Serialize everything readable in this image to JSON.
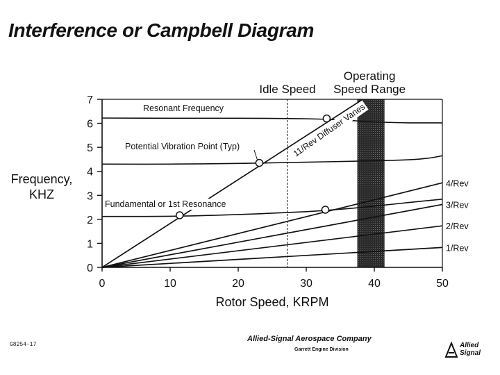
{
  "chart_data": {
    "type": "line",
    "title": "Interference or Campbell Diagram",
    "xlabel": "Rotor Speed, KRPM",
    "ylabel_lines": [
      "Frequency,",
      "KHZ"
    ],
    "xlim": [
      0,
      50
    ],
    "ylim": [
      0,
      7
    ],
    "x_ticks": [
      0,
      10,
      20,
      30,
      40,
      50
    ],
    "y_ticks": [
      0,
      1,
      2,
      3,
      4,
      5,
      6,
      7
    ],
    "grid": false,
    "series": [
      {
        "name": "1/Rev",
        "x": [
          0,
          50
        ],
        "y": [
          0,
          0.83
        ]
      },
      {
        "name": "2/Rev",
        "x": [
          0,
          50
        ],
        "y": [
          0,
          1.73
        ]
      },
      {
        "name": "3/Rev",
        "x": [
          0,
          50
        ],
        "y": [
          0,
          2.62
        ]
      },
      {
        "name": "4/Rev",
        "x": [
          0,
          50
        ],
        "y": [
          0,
          3.52
        ]
      },
      {
        "name": "11/Rev Diffuser Vanes",
        "x": [
          0,
          38.3
        ],
        "y": [
          0,
          7.0
        ]
      }
    ],
    "resonance_curves": [
      {
        "name": "Resonant Frequency",
        "x": [
          0,
          10,
          20,
          30,
          35,
          40,
          45,
          50
        ],
        "y": [
          6.22,
          6.21,
          6.21,
          6.19,
          6.14,
          6.06,
          6.02,
          6.02
        ]
      },
      {
        "name": "Potential Vibration Point (Typ)",
        "x": [
          0,
          10,
          20,
          30,
          40,
          45,
          48,
          50
        ],
        "y": [
          4.3,
          4.3,
          4.33,
          4.38,
          4.44,
          4.48,
          4.55,
          4.65
        ]
      },
      {
        "name": "Fundamental or 1st Resonance",
        "x": [
          0,
          10,
          20,
          30,
          35,
          40,
          45,
          50
        ],
        "y": [
          2.12,
          2.13,
          2.2,
          2.32,
          2.42,
          2.55,
          2.7,
          2.84
        ]
      }
    ],
    "intersection_points": [
      {
        "x": 11.4,
        "y": 2.17
      },
      {
        "x": 23.1,
        "y": 4.35
      },
      {
        "x": 32.8,
        "y": 2.4
      },
      {
        "x": 33.0,
        "y": 6.2
      }
    ],
    "idle_speed": {
      "label": "Idle Speed",
      "x": 27.2
    },
    "operating_range": {
      "label_lines": [
        "Operating",
        "Speed Range"
      ],
      "x_start": 37.5,
      "x_end": 41.5
    }
  },
  "footer": {
    "code": "G8254-17",
    "company": "Allied-Signal Aerospace Company",
    "division": "Garrett Engine Division",
    "logo_lines": [
      "Allied",
      "Signal"
    ]
  },
  "colors": {
    "ink": "#111111",
    "band": "#2a2a2a",
    "background": "#ffffff"
  }
}
